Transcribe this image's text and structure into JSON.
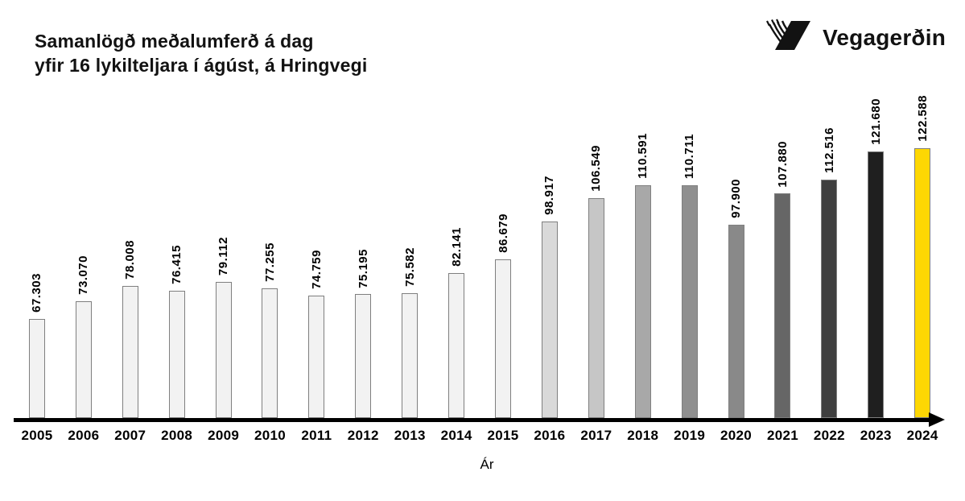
{
  "header": {
    "title_line1": "Samanlögð meðalumferð á dag",
    "title_line2": "yfir 16 lykilteljara í ágúst, á Hringvegi",
    "logo_text": "Vegagerðin"
  },
  "colors": {
    "accent_yellow": "#fdd703",
    "bar_light_gray": "#f2f2f2",
    "bar_border": "#7f7f7f",
    "axis": "#000000"
  },
  "chart_data": {
    "type": "bar",
    "title": "Samanlögð meðalumferð á dag yfir 16 lykilteljara í ágúst, á Hringvegi",
    "xlabel": "Ár",
    "ylabel": "",
    "categories": [
      "2005",
      "2006",
      "2007",
      "2008",
      "2009",
      "2010",
      "2011",
      "2012",
      "2013",
      "2014",
      "2015",
      "2016",
      "2017",
      "2018",
      "2019",
      "2020",
      "2021",
      "2022",
      "2023",
      "2024"
    ],
    "values": [
      67303,
      73070,
      78008,
      76415,
      79112,
      77255,
      74759,
      75195,
      75582,
      82141,
      86679,
      98917,
      106549,
      110591,
      110711,
      97900,
      107880,
      112516,
      121680,
      122588
    ],
    "value_labels": [
      "67.303",
      "73.070",
      "78.008",
      "76.415",
      "79.112",
      "77.255",
      "74.759",
      "75.195",
      "75.582",
      "82.141",
      "86.679",
      "98.917",
      "106.549",
      "110.591",
      "110.711",
      "97.900",
      "107.880",
      "112.516",
      "121.680",
      "122.588"
    ],
    "bar_colors": [
      "#f2f2f2",
      "#f2f2f2",
      "#f2f2f2",
      "#f2f2f2",
      "#f2f2f2",
      "#f2f2f2",
      "#f2f2f2",
      "#f2f2f2",
      "#f2f2f2",
      "#f2f2f2",
      "#f2f2f2",
      "#d9d9d9",
      "#c6c6c6",
      "#a8a8a8",
      "#8f8f8f",
      "#898989",
      "#666666",
      "#3f3f3f",
      "#1f1f1f",
      "#fdd703"
    ],
    "bar_border_color": "#7f7f7f",
    "ylim": [
      35000,
      125000
    ],
    "grid": false,
    "legend": false,
    "value_label_rotation_deg": -90,
    "x_axis_arrow": "right"
  }
}
